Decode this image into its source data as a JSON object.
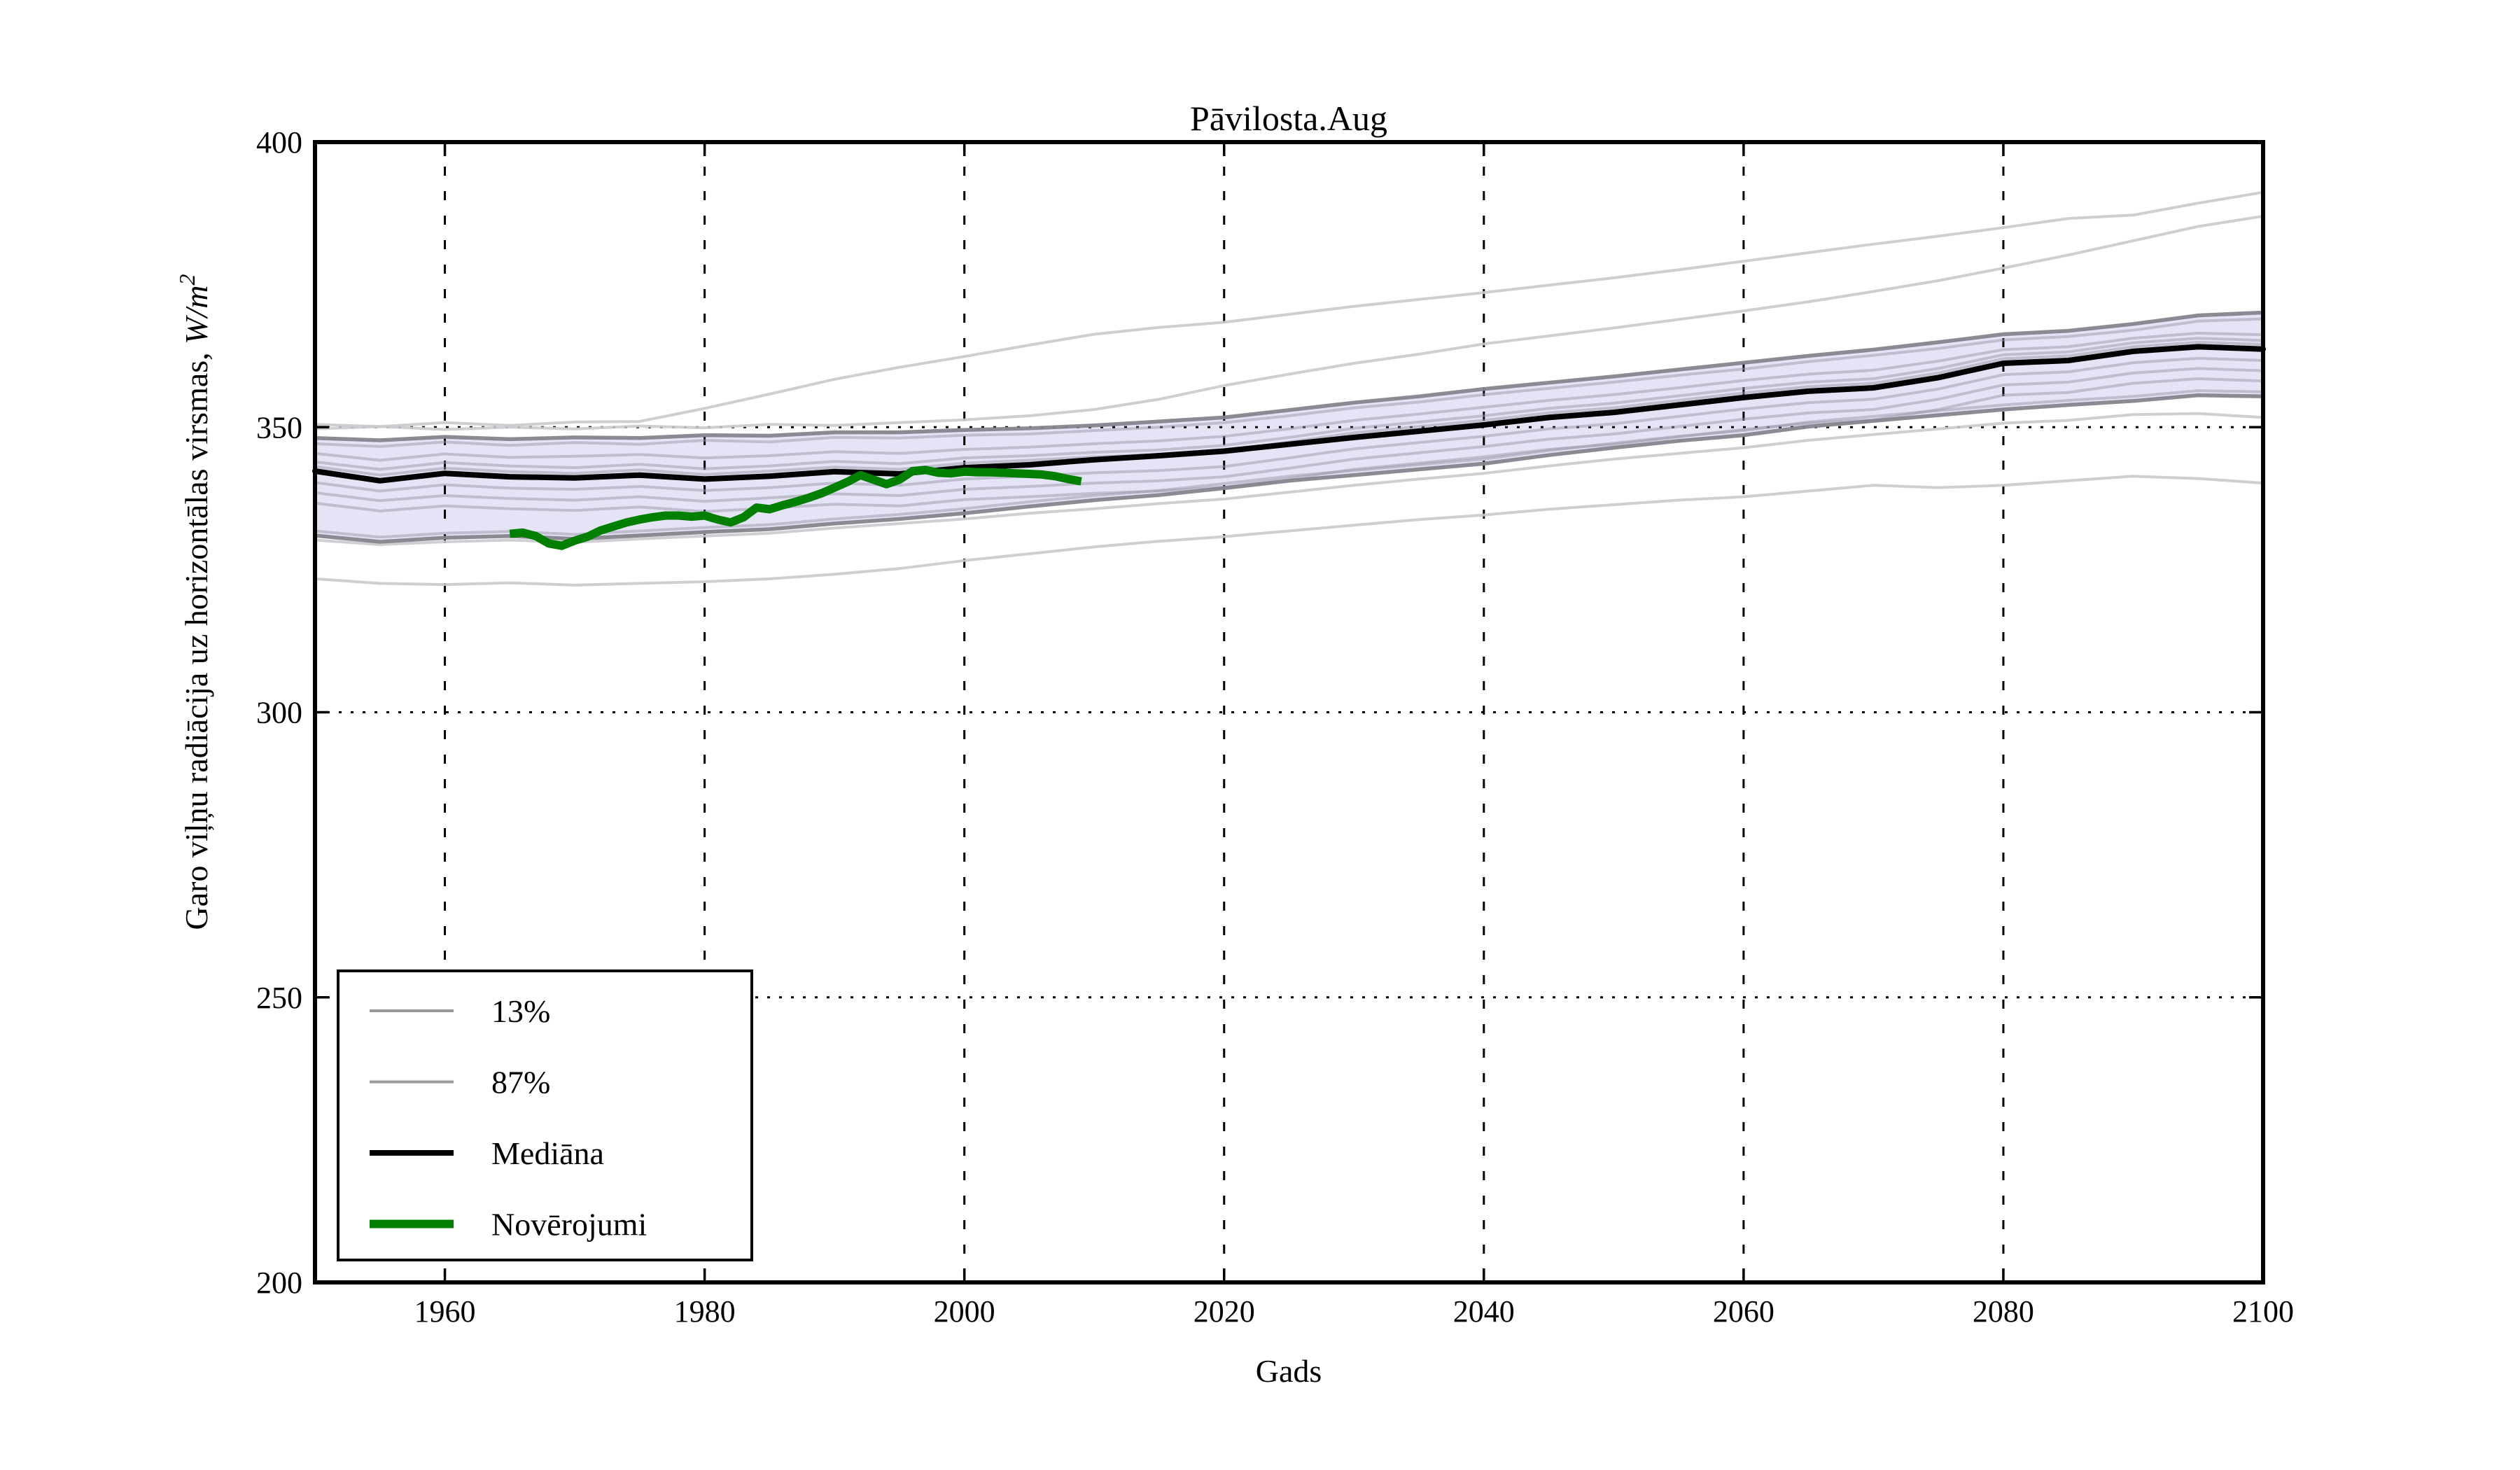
{
  "chart_data": {
    "type": "line",
    "title": "Pāvilosta.Aug",
    "xlabel": "Gads",
    "ylabel": "Garo viļņu radiācija uz horizontālas virsmas, W/m²",
    "ylabel_parts": {
      "text": "Garo viļņu radiācija uz horizontālas virsmas, ",
      "math": "W/m",
      "sup": "2"
    },
    "xlim": [
      1950,
      2100
    ],
    "ylim": [
      200,
      400
    ],
    "xticks": [
      1960,
      1980,
      2000,
      2020,
      2040,
      2060,
      2080,
      2100
    ],
    "yticks": [
      200,
      250,
      300,
      350,
      400
    ],
    "grid": true,
    "grid_style": "dotted",
    "legend_position": "lower left",
    "x": [
      1950,
      1955,
      1960,
      1965,
      1970,
      1975,
      1980,
      1985,
      1990,
      1995,
      2000,
      2005,
      2010,
      2015,
      2020,
      2025,
      2030,
      2035,
      2040,
      2045,
      2050,
      2055,
      2060,
      2065,
      2070,
      2075,
      2080,
      2085,
      2090,
      2095,
      2100
    ],
    "series": [
      {
        "name": "Mediāna",
        "role": "median",
        "values": [
          342.3,
          340.6,
          341.9,
          341.3,
          341.1,
          341.6,
          340.9,
          341.4,
          342.2,
          341.8,
          342.9,
          343.4,
          344.3,
          345.0,
          345.8,
          347.0,
          348.2,
          349.3,
          350.4,
          351.7,
          352.6,
          353.9,
          355.2,
          356.3,
          356.9,
          358.7,
          361.2,
          361.7,
          363.3,
          364.1,
          363.7
        ]
      },
      {
        "name": "87%",
        "role": "band_upper",
        "values": [
          348.1,
          347.7,
          348.3,
          347.9,
          348.2,
          348.1,
          348.6,
          348.5,
          349.1,
          349.1,
          349.5,
          349.8,
          350.3,
          351.0,
          351.7,
          353.0,
          354.3,
          355.4,
          356.7,
          357.8,
          358.9,
          360.1,
          361.3,
          362.5,
          363.6,
          364.9,
          366.3,
          366.9,
          368.1,
          369.6,
          370.1
        ]
      },
      {
        "name": "13%",
        "role": "band_lower",
        "values": [
          331.0,
          329.9,
          330.6,
          330.9,
          330.4,
          331.0,
          331.6,
          332.1,
          333.1,
          333.9,
          334.9,
          336.1,
          337.2,
          338.1,
          339.3,
          340.6,
          341.6,
          342.6,
          343.6,
          345.1,
          346.4,
          347.6,
          348.6,
          350.1,
          351.1,
          352.1,
          353.1,
          353.9,
          354.6,
          355.6,
          355.4
        ]
      },
      {
        "name": "outlier-upper-1",
        "role": "outlier",
        "values": [
          350.5,
          350.1,
          350.8,
          350.3,
          350.9,
          351.0,
          353.3,
          355.8,
          358.4,
          360.5,
          362.4,
          364.4,
          366.3,
          367.5,
          368.4,
          369.8,
          371.2,
          372.4,
          373.6,
          374.9,
          376.2,
          377.6,
          379.1,
          380.6,
          382.1,
          383.5,
          385.0,
          386.6,
          387.2,
          389.3,
          391.2
        ]
      },
      {
        "name": "outlier-upper-2",
        "role": "outlier",
        "values": [
          349.7,
          350.1,
          349.6,
          350.0,
          349.7,
          350.2,
          349.9,
          350.5,
          350.3,
          350.8,
          351.3,
          352.0,
          353.1,
          354.9,
          357.3,
          359.3,
          361.2,
          362.8,
          364.6,
          366.0,
          367.4,
          368.9,
          370.4,
          372.0,
          373.8,
          375.7,
          377.9,
          380.2,
          382.7,
          385.2,
          387.0
        ]
      },
      {
        "name": "outlier-lower-1",
        "role": "outlier",
        "values": [
          323.4,
          322.6,
          322.4,
          322.7,
          322.3,
          322.6,
          322.9,
          323.4,
          324.2,
          325.2,
          326.6,
          327.8,
          329.0,
          330.0,
          330.8,
          331.8,
          332.8,
          333.8,
          334.6,
          335.6,
          336.4,
          337.2,
          337.8,
          338.8,
          339.8,
          339.4,
          339.8,
          340.6,
          341.4,
          341.0,
          340.2
        ]
      },
      {
        "name": "outlier-lower-2",
        "role": "outlier",
        "values": [
          330.2,
          329.4,
          329.9,
          330.2,
          329.8,
          330.4,
          330.9,
          331.4,
          332.3,
          333.1,
          333.9,
          334.9,
          335.7,
          336.6,
          337.4,
          338.6,
          339.8,
          340.9,
          341.9,
          343.2,
          344.4,
          345.4,
          346.4,
          347.7,
          348.7,
          349.7,
          350.7,
          351.2,
          352.2,
          352.4,
          351.7
        ]
      },
      {
        "name": "ensemble-1",
        "role": "ensemble",
        "values": [
          347.1,
          346.6,
          347.4,
          346.8,
          347.3,
          347.0,
          347.7,
          347.4,
          348.2,
          348.1,
          348.6,
          348.8,
          349.4,
          350.0,
          350.8,
          352.0,
          353.4,
          354.4,
          355.7,
          356.8,
          357.9,
          359.1,
          360.2,
          361.5,
          362.6,
          363.8,
          365.3,
          365.9,
          367.0,
          368.6,
          369.0
        ]
      },
      {
        "name": "ensemble-2",
        "role": "ensemble",
        "values": [
          345.4,
          344.2,
          345.3,
          344.7,
          344.9,
          345.2,
          344.6,
          345.0,
          345.7,
          345.4,
          346.1,
          346.5,
          347.1,
          347.6,
          348.4,
          349.7,
          351.2,
          352.3,
          353.5,
          354.7,
          355.7,
          356.9,
          358.2,
          359.3,
          360.0,
          361.6,
          363.6,
          364.1,
          365.6,
          366.5,
          366.2
        ]
      },
      {
        "name": "ensemble-3",
        "role": "ensemble",
        "values": [
          343.9,
          342.6,
          343.8,
          343.2,
          342.9,
          343.5,
          342.7,
          343.2,
          344.0,
          343.6,
          344.6,
          345.0,
          345.6,
          346.0,
          346.8,
          348.2,
          349.8,
          350.9,
          352.0,
          353.3,
          354.2,
          355.5,
          356.8,
          357.9,
          358.5,
          360.3,
          362.7,
          363.2,
          364.8,
          365.6,
          365.2
        ]
      },
      {
        "name": "ensemble-4",
        "role": "ensemble",
        "values": [
          343.1,
          341.6,
          342.8,
          342.2,
          341.9,
          342.5,
          341.7,
          342.3,
          343.0,
          342.6,
          343.7,
          344.2,
          344.8,
          345.2,
          345.9,
          347.4,
          349.0,
          350.1,
          351.2,
          352.5,
          353.4,
          354.7,
          356.0,
          357.1,
          357.7,
          359.5,
          362.0,
          362.5,
          364.1,
          364.9,
          364.5
        ]
      },
      {
        "name": "ensemble-5",
        "role": "ensemble",
        "values": [
          340.3,
          338.8,
          339.9,
          339.3,
          339.1,
          339.6,
          338.9,
          339.4,
          340.2,
          339.8,
          340.9,
          341.4,
          342.0,
          342.4,
          343.1,
          344.6,
          346.2,
          347.3,
          348.4,
          349.7,
          350.6,
          351.9,
          353.2,
          354.3,
          354.9,
          356.7,
          359.2,
          359.7,
          361.3,
          362.1,
          361.7
        ]
      },
      {
        "name": "ensemble-6",
        "role": "ensemble",
        "values": [
          338.5,
          337.1,
          338.0,
          337.5,
          337.2,
          337.8,
          337.0,
          337.6,
          338.3,
          338.0,
          339.1,
          339.6,
          340.2,
          340.6,
          341.3,
          342.8,
          344.4,
          345.5,
          346.6,
          347.9,
          348.8,
          350.1,
          351.4,
          352.5,
          353.1,
          354.9,
          357.4,
          357.9,
          359.5,
          360.3,
          359.9
        ]
      },
      {
        "name": "ensemble-7",
        "role": "ensemble",
        "values": [
          336.7,
          335.3,
          336.2,
          335.7,
          335.4,
          336.0,
          335.2,
          335.8,
          336.5,
          336.2,
          337.3,
          337.8,
          338.4,
          338.8,
          339.5,
          341.0,
          342.6,
          343.7,
          344.8,
          346.1,
          347.0,
          348.3,
          349.6,
          350.7,
          351.3,
          353.1,
          355.6,
          356.1,
          357.7,
          358.5,
          358.1
        ]
      },
      {
        "name": "ensemble-8",
        "role": "ensemble",
        "values": [
          331.8,
          330.7,
          331.4,
          331.7,
          331.2,
          331.8,
          332.4,
          332.9,
          333.9,
          334.7,
          335.7,
          336.9,
          338.0,
          338.9,
          340.1,
          341.4,
          342.4,
          343.4,
          344.4,
          345.9,
          347.2,
          348.4,
          349.4,
          350.9,
          351.9,
          352.9,
          353.9,
          354.7,
          355.4,
          356.4,
          356.2
        ]
      }
    ],
    "observations": {
      "name": "Novērojumi",
      "points": [
        [
          1965,
          331.3
        ],
        [
          1966,
          331.5
        ],
        [
          1967,
          330.9
        ],
        [
          1968,
          329.6
        ],
        [
          1969,
          329.2
        ],
        [
          1970,
          330.1
        ],
        [
          1971,
          330.8
        ],
        [
          1972,
          331.9
        ],
        [
          1973,
          332.6
        ],
        [
          1974,
          333.3
        ],
        [
          1975,
          333.8
        ],
        [
          1976,
          334.2
        ],
        [
          1977,
          334.5
        ],
        [
          1978,
          334.5
        ],
        [
          1979,
          334.3
        ],
        [
          1980,
          334.5
        ],
        [
          1981,
          333.8
        ],
        [
          1982,
          333.3
        ],
        [
          1983,
          334.2
        ],
        [
          1984,
          335.9
        ],
        [
          1985,
          335.6
        ],
        [
          1986,
          336.3
        ],
        [
          1987,
          336.9
        ],
        [
          1988,
          337.6
        ],
        [
          1989,
          338.4
        ],
        [
          1990,
          339.4
        ],
        [
          1991,
          340.4
        ],
        [
          1992,
          341.6
        ],
        [
          1993,
          340.8
        ],
        [
          1994,
          340.0
        ],
        [
          1995,
          340.8
        ],
        [
          1996,
          342.3
        ],
        [
          1997,
          342.5
        ],
        [
          1998,
          342.0
        ],
        [
          1999,
          341.9
        ],
        [
          2000,
          342.2
        ],
        [
          2001,
          342.1
        ],
        [
          2002,
          342.1
        ],
        [
          2003,
          342.0
        ],
        [
          2004,
          341.9
        ],
        [
          2005,
          341.8
        ],
        [
          2006,
          341.7
        ],
        [
          2007,
          341.4
        ],
        [
          2008,
          340.9
        ],
        [
          2009,
          340.5
        ]
      ]
    }
  },
  "legend": {
    "items": [
      {
        "label": "13%",
        "color": "#999999",
        "line_width": 4
      },
      {
        "label": "87%",
        "color": "#999999",
        "line_width": 4
      },
      {
        "label": "Mediāna",
        "color": "#000000",
        "line_width": 8
      },
      {
        "label": "Novērojumi",
        "color": "#007f00",
        "line_width": 12
      }
    ]
  },
  "colors": {
    "background": "#ffffff",
    "frame": "#000000",
    "grid": "#000000",
    "band_fill": "#e4e4f6",
    "band_edge": "#85858d",
    "ensemble": "#9898a8",
    "outlier": "#c9c9ce",
    "median": "#000000",
    "observations": "#007f00",
    "text": "#000000"
  }
}
